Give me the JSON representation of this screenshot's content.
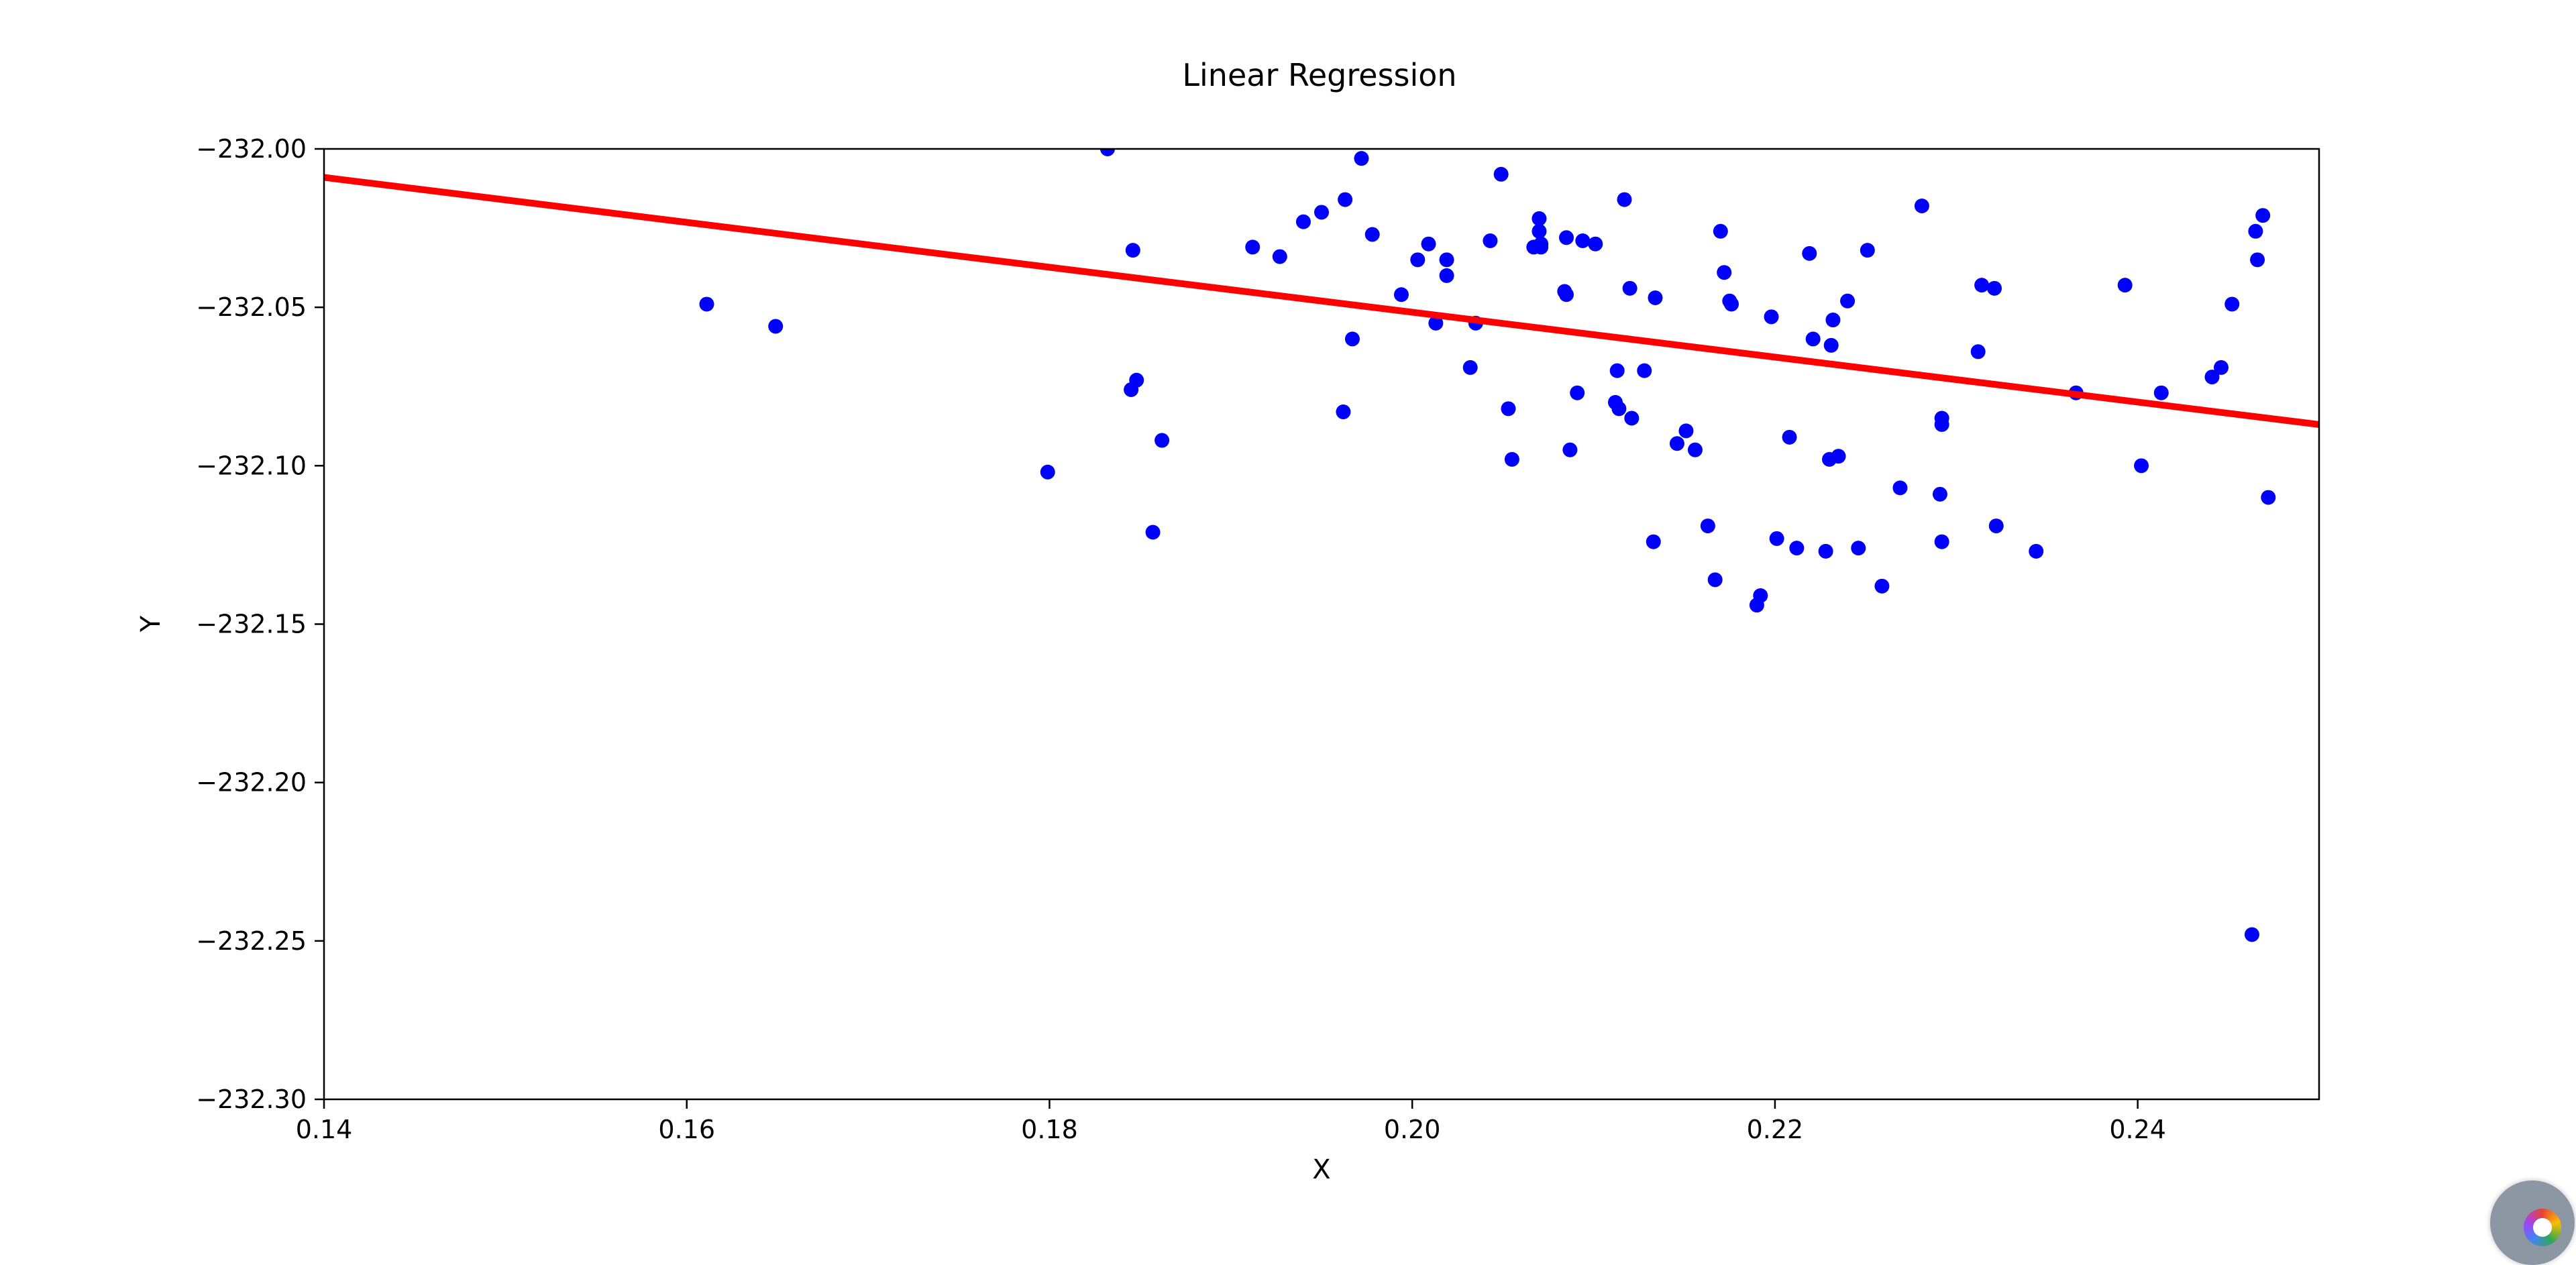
{
  "chart_data": {
    "type": "scatter",
    "title": "Linear Regression",
    "xlabel": "X",
    "ylabel": "Y",
    "xlim": [
      0.14,
      0.25
    ],
    "ylim": [
      -232.3,
      -232.0
    ],
    "xticks": [
      0.14,
      0.16,
      0.18,
      0.2,
      0.22,
      0.24
    ],
    "xtick_labels": [
      "0.14",
      "0.16",
      "0.18",
      "0.20",
      "0.22",
      "0.24"
    ],
    "yticks": [
      -232.0,
      -232.05,
      -232.1,
      -232.15,
      -232.2,
      -232.25,
      -232.3
    ],
    "ytick_labels": [
      "−232.00",
      "−232.05",
      "−232.10",
      "−232.15",
      "−232.20",
      "−232.25",
      "−232.30"
    ],
    "grid": false,
    "colors": {
      "points": "#0000ff",
      "line": "#ff0000"
    },
    "series": [
      {
        "type": "scatter",
        "x": [
          0.1611,
          0.1649,
          0.1799,
          0.1832,
          0.1845,
          0.1846,
          0.1848,
          0.1857,
          0.1862,
          0.1912,
          0.1927,
          0.194,
          0.195,
          0.1962,
          0.1963,
          0.1967,
          0.1972,
          0.1978,
          0.1994,
          0.2003,
          0.2009,
          0.2013,
          0.2019,
          0.2019,
          0.2032,
          0.2035,
          0.2043,
          0.2049,
          0.2053,
          0.2055,
          0.2067,
          0.207,
          0.207,
          0.2071,
          0.2071,
          0.2084,
          0.2085,
          0.2085,
          0.2087,
          0.2091,
          0.2094,
          0.2101,
          0.2112,
          0.2113,
          0.2114,
          0.2117,
          0.212,
          0.2121,
          0.2128,
          0.2133,
          0.2134,
          0.2146,
          0.2151,
          0.2156,
          0.2163,
          0.2167,
          0.217,
          0.2172,
          0.2175,
          0.2176,
          0.219,
          0.2192,
          0.2198,
          0.2201,
          0.2208,
          0.2212,
          0.2219,
          0.2221,
          0.2228,
          0.223,
          0.2231,
          0.2232,
          0.2235,
          0.224,
          0.2246,
          0.2251,
          0.2259,
          0.2269,
          0.2281,
          0.2291,
          0.2292,
          0.2292,
          0.2292,
          0.2312,
          0.2314,
          0.2321,
          0.2322,
          0.2344,
          0.2366,
          0.2393,
          0.2402,
          0.2413,
          0.2441,
          0.2446,
          0.2452,
          0.2463,
          0.2465,
          0.2466,
          0.2469,
          0.2472
        ],
        "y": [
          -232.049,
          -232.056,
          -232.102,
          -232.0,
          -232.076,
          -232.032,
          -232.073,
          -232.121,
          -232.092,
          -232.031,
          -232.034,
          -232.023,
          -232.02,
          -232.083,
          -232.016,
          -232.06,
          -232.003,
          -232.027,
          -232.046,
          -232.035,
          -232.03,
          -232.055,
          -232.04,
          -232.035,
          -232.069,
          -232.055,
          -232.029,
          -232.008,
          -232.082,
          -232.098,
          -232.031,
          -232.022,
          -232.026,
          -232.031,
          -232.03,
          -232.045,
          -232.028,
          -232.046,
          -232.095,
          -232.077,
          -232.029,
          -232.03,
          -232.08,
          -232.07,
          -232.082,
          -232.016,
          -232.044,
          -232.085,
          -232.07,
          -232.124,
          -232.047,
          -232.093,
          -232.089,
          -232.095,
          -232.119,
          -232.136,
          -232.026,
          -232.039,
          -232.048,
          -232.049,
          -232.144,
          -232.141,
          -232.053,
          -232.123,
          -232.091,
          -232.126,
          -232.033,
          -232.06,
          -232.127,
          -232.098,
          -232.062,
          -232.054,
          -232.097,
          -232.048,
          -232.126,
          -232.032,
          -232.138,
          -232.107,
          -232.018,
          -232.109,
          -232.085,
          -232.087,
          -232.124,
          -232.064,
          -232.043,
          -232.044,
          -232.119,
          -232.127,
          -232.077,
          -232.043,
          -232.1,
          -232.077,
          -232.072,
          -232.069,
          -232.049,
          -232.248,
          -232.026,
          -232.035,
          -232.021,
          -232.11
        ]
      },
      {
        "type": "line",
        "x": [
          0.14,
          0.25
        ],
        "y": [
          -232.009,
          -232.087
        ]
      }
    ]
  }
}
